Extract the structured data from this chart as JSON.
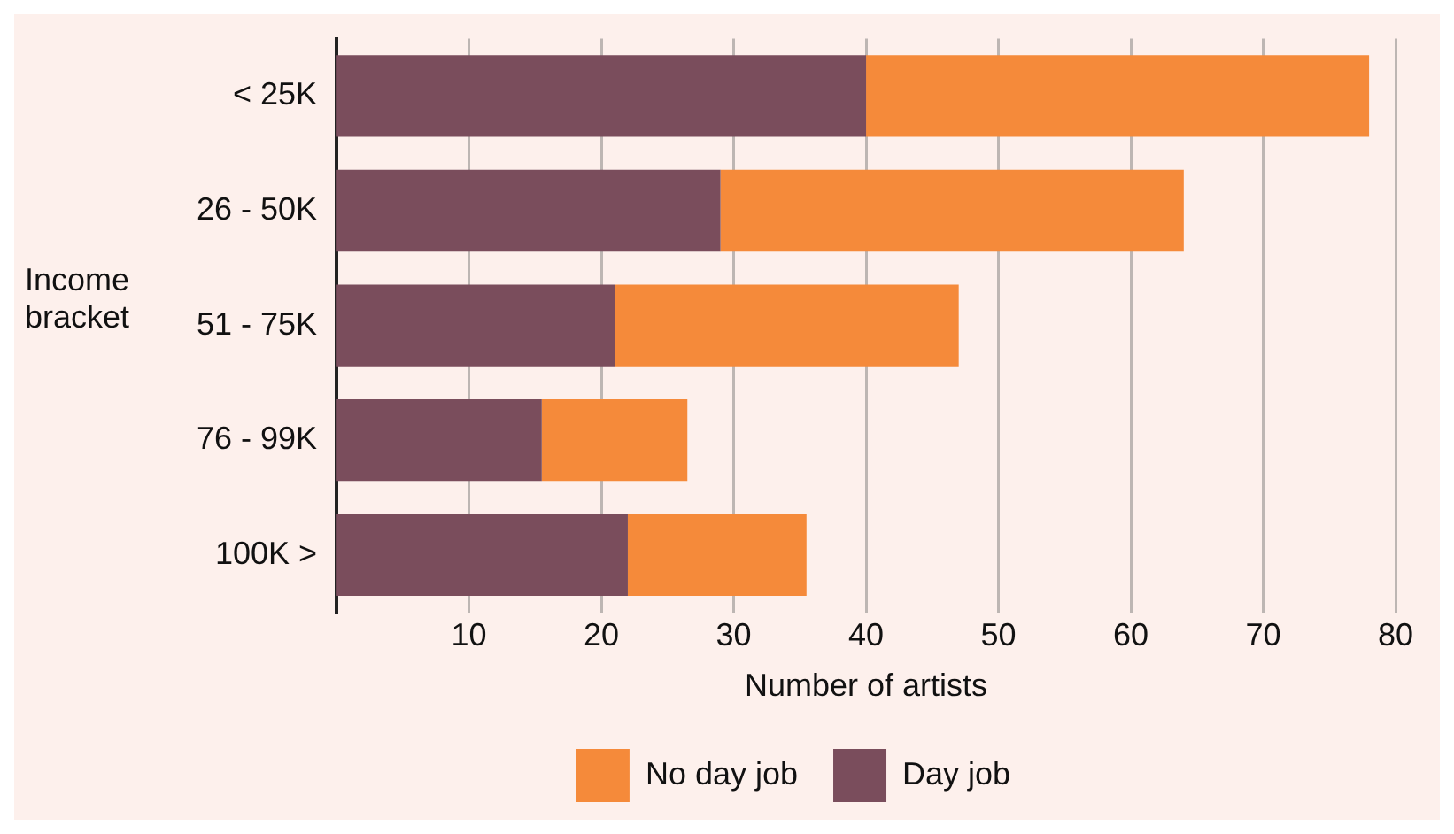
{
  "chart_data": {
    "type": "bar",
    "orientation": "horizontal",
    "stacked": true,
    "xlabel": "Number of artists",
    "ylabel": "Income bracket",
    "categories": [
      "< 25K",
      "26 - 50K",
      "51 - 75K",
      "76 - 99K",
      "100K >"
    ],
    "series": [
      {
        "name": "Day job",
        "color": "#7a4d5c",
        "values": [
          40,
          29,
          21,
          15.5,
          22
        ]
      },
      {
        "name": "No day job",
        "color": "#f58a3a",
        "values": [
          38,
          35,
          26,
          11,
          13.5
        ]
      }
    ],
    "xlim": [
      0,
      80
    ],
    "xticks": [
      10,
      20,
      30,
      40,
      50,
      60,
      70,
      80
    ],
    "grid": "x",
    "legend": "bottom"
  }
}
